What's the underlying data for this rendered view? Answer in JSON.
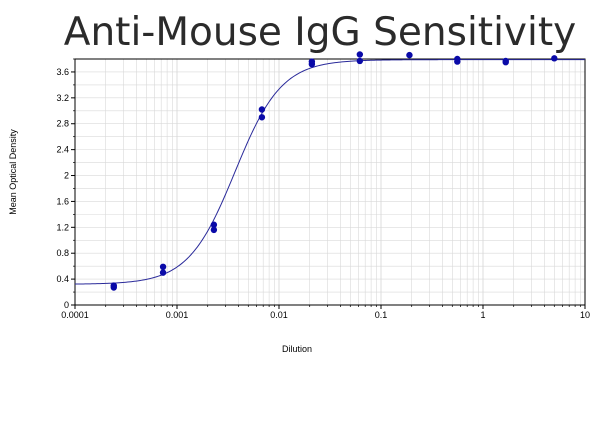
{
  "chart_data": {
    "type": "scatter",
    "title": "Anti-Mouse IgG Sensitivity",
    "xlabel": "Dilution",
    "ylabel": "Mean Optical Density",
    "x_scale": "log",
    "xlim": [
      0.0001,
      10
    ],
    "ylim": [
      0,
      3.8
    ],
    "x_ticks": [
      "0.0001",
      "0.001",
      "0.01",
      "0.1",
      "1",
      "10"
    ],
    "y_ticks": [
      "0",
      "0.4",
      "0.8",
      "1.2",
      "1.6",
      "2",
      "2.4",
      "2.8",
      "3.2",
      "3.6"
    ],
    "grid": true,
    "series": [
      {
        "points": [
          {
            "x": 0.00024,
            "y": 0.27
          },
          {
            "x": 0.00024,
            "y": 0.3
          },
          {
            "x": 0.00073,
            "y": 0.5
          },
          {
            "x": 0.00073,
            "y": 0.59
          },
          {
            "x": 0.0023,
            "y": 1.16
          },
          {
            "x": 0.0023,
            "y": 1.24
          },
          {
            "x": 0.0068,
            "y": 2.9
          },
          {
            "x": 0.0068,
            "y": 3.02
          },
          {
            "x": 0.021,
            "y": 3.72
          },
          {
            "x": 0.021,
            "y": 3.76
          },
          {
            "x": 0.062,
            "y": 3.77
          },
          {
            "x": 0.062,
            "y": 3.87
          },
          {
            "x": 0.19,
            "y": 3.86
          },
          {
            "x": 0.56,
            "y": 3.76
          },
          {
            "x": 0.56,
            "y": 3.8
          },
          {
            "x": 1.67,
            "y": 3.75
          },
          {
            "x": 1.67,
            "y": 3.77
          },
          {
            "x": 5.0,
            "y": 3.81
          }
        ]
      }
    ],
    "fit_curve": {
      "type": "4PL",
      "bottom": 0.32,
      "top": 3.79,
      "ec50": 0.0037,
      "hill": 1.9
    },
    "colors": {
      "points": "#0a0aa8",
      "curve": "#2a2a9a",
      "grid": "#d9d9d9",
      "axis": "#000000"
    }
  }
}
